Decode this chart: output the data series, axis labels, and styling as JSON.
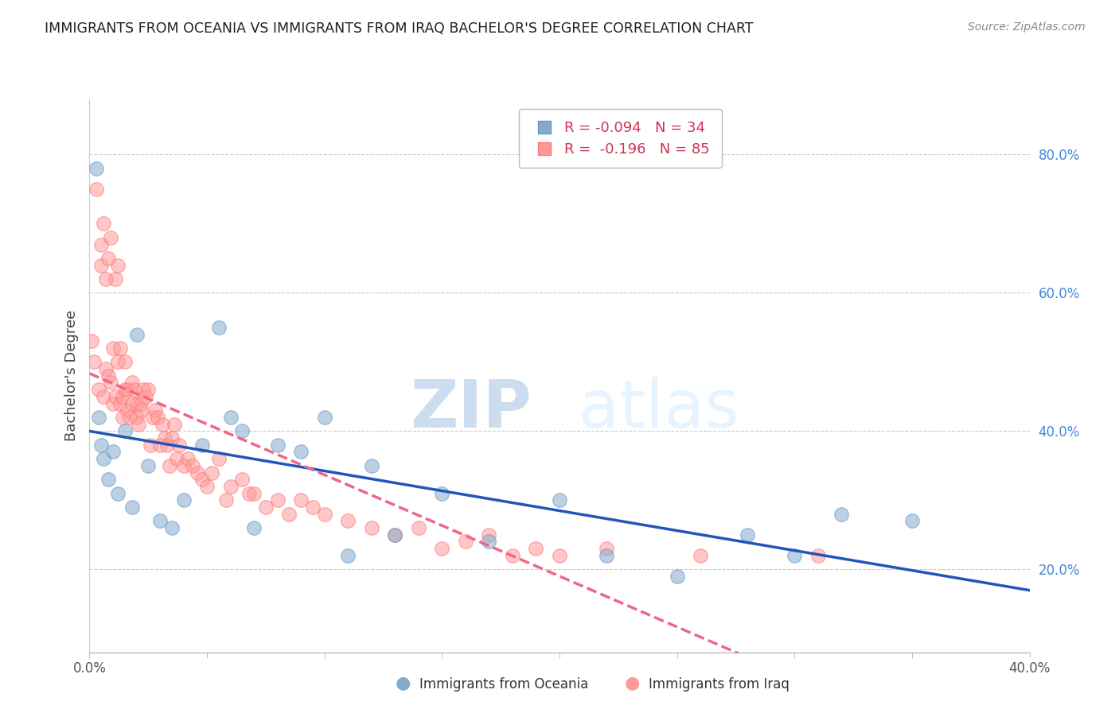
{
  "title": "IMMIGRANTS FROM OCEANIA VS IMMIGRANTS FROM IRAQ BACHELOR'S DEGREE CORRELATION CHART",
  "source": "Source: ZipAtlas.com",
  "ylabel_left": "Bachelor's Degree",
  "legend_label1": "Immigrants from Oceania",
  "legend_label2": "Immigrants from Iraq",
  "r1": -0.094,
  "n1": 34,
  "r2": -0.196,
  "n2": 85,
  "color1": "#85AACC",
  "color2": "#FF9999",
  "color1_edge": "#6699CC",
  "color2_edge": "#FF7777",
  "trendline1_color": "#2255BB",
  "trendline2_color": "#EE6688",
  "xlim": [
    0.0,
    0.4
  ],
  "ylim": [
    0.08,
    0.88
  ],
  "right_yticks": [
    0.2,
    0.4,
    0.6,
    0.8
  ],
  "right_yticklabels": [
    "20.0%",
    "40.0%",
    "60.0%",
    "80.0%"
  ],
  "bottom_xticks": [
    0.0,
    0.05,
    0.1,
    0.15,
    0.2,
    0.25,
    0.3,
    0.35,
    0.4
  ],
  "bottom_xticklabels": [
    "0.0%",
    "",
    "",
    "",
    "",
    "",
    "",
    "",
    "40.0%"
  ],
  "watermark_zip": "ZIP",
  "watermark_atlas": "atlas",
  "oceania_x": [
    0.003,
    0.004,
    0.005,
    0.006,
    0.008,
    0.01,
    0.012,
    0.015,
    0.018,
    0.02,
    0.025,
    0.03,
    0.035,
    0.04,
    0.048,
    0.055,
    0.06,
    0.065,
    0.07,
    0.08,
    0.09,
    0.1,
    0.11,
    0.12,
    0.13,
    0.15,
    0.17,
    0.2,
    0.22,
    0.25,
    0.28,
    0.3,
    0.32,
    0.35
  ],
  "oceania_y": [
    0.78,
    0.42,
    0.38,
    0.36,
    0.33,
    0.37,
    0.31,
    0.4,
    0.29,
    0.54,
    0.35,
    0.27,
    0.26,
    0.3,
    0.38,
    0.55,
    0.42,
    0.4,
    0.26,
    0.38,
    0.37,
    0.42,
    0.22,
    0.35,
    0.25,
    0.31,
    0.24,
    0.3,
    0.22,
    0.19,
    0.25,
    0.22,
    0.28,
    0.27
  ],
  "iraq_x": [
    0.001,
    0.002,
    0.003,
    0.004,
    0.005,
    0.005,
    0.006,
    0.006,
    0.007,
    0.007,
    0.008,
    0.008,
    0.009,
    0.009,
    0.01,
    0.01,
    0.011,
    0.011,
    0.012,
    0.012,
    0.013,
    0.013,
    0.014,
    0.014,
    0.015,
    0.015,
    0.016,
    0.016,
    0.017,
    0.018,
    0.018,
    0.019,
    0.02,
    0.02,
    0.021,
    0.022,
    0.022,
    0.023,
    0.024,
    0.025,
    0.026,
    0.027,
    0.028,
    0.029,
    0.03,
    0.031,
    0.032,
    0.033,
    0.034,
    0.035,
    0.036,
    0.037,
    0.038,
    0.04,
    0.042,
    0.044,
    0.046,
    0.048,
    0.05,
    0.052,
    0.055,
    0.058,
    0.06,
    0.065,
    0.068,
    0.07,
    0.075,
    0.08,
    0.085,
    0.09,
    0.095,
    0.1,
    0.11,
    0.12,
    0.13,
    0.14,
    0.15,
    0.16,
    0.17,
    0.18,
    0.19,
    0.2,
    0.22,
    0.26,
    0.31
  ],
  "iraq_y": [
    0.53,
    0.5,
    0.75,
    0.46,
    0.64,
    0.67,
    0.45,
    0.7,
    0.62,
    0.49,
    0.65,
    0.48,
    0.47,
    0.68,
    0.52,
    0.44,
    0.62,
    0.45,
    0.5,
    0.64,
    0.52,
    0.44,
    0.42,
    0.45,
    0.5,
    0.46,
    0.43,
    0.46,
    0.42,
    0.47,
    0.44,
    0.46,
    0.42,
    0.44,
    0.41,
    0.43,
    0.44,
    0.46,
    0.45,
    0.46,
    0.38,
    0.42,
    0.43,
    0.42,
    0.38,
    0.41,
    0.39,
    0.38,
    0.35,
    0.39,
    0.41,
    0.36,
    0.38,
    0.35,
    0.36,
    0.35,
    0.34,
    0.33,
    0.32,
    0.34,
    0.36,
    0.3,
    0.32,
    0.33,
    0.31,
    0.31,
    0.29,
    0.3,
    0.28,
    0.3,
    0.29,
    0.28,
    0.27,
    0.26,
    0.25,
    0.26,
    0.23,
    0.24,
    0.25,
    0.22,
    0.23,
    0.22,
    0.23,
    0.22,
    0.22
  ]
}
